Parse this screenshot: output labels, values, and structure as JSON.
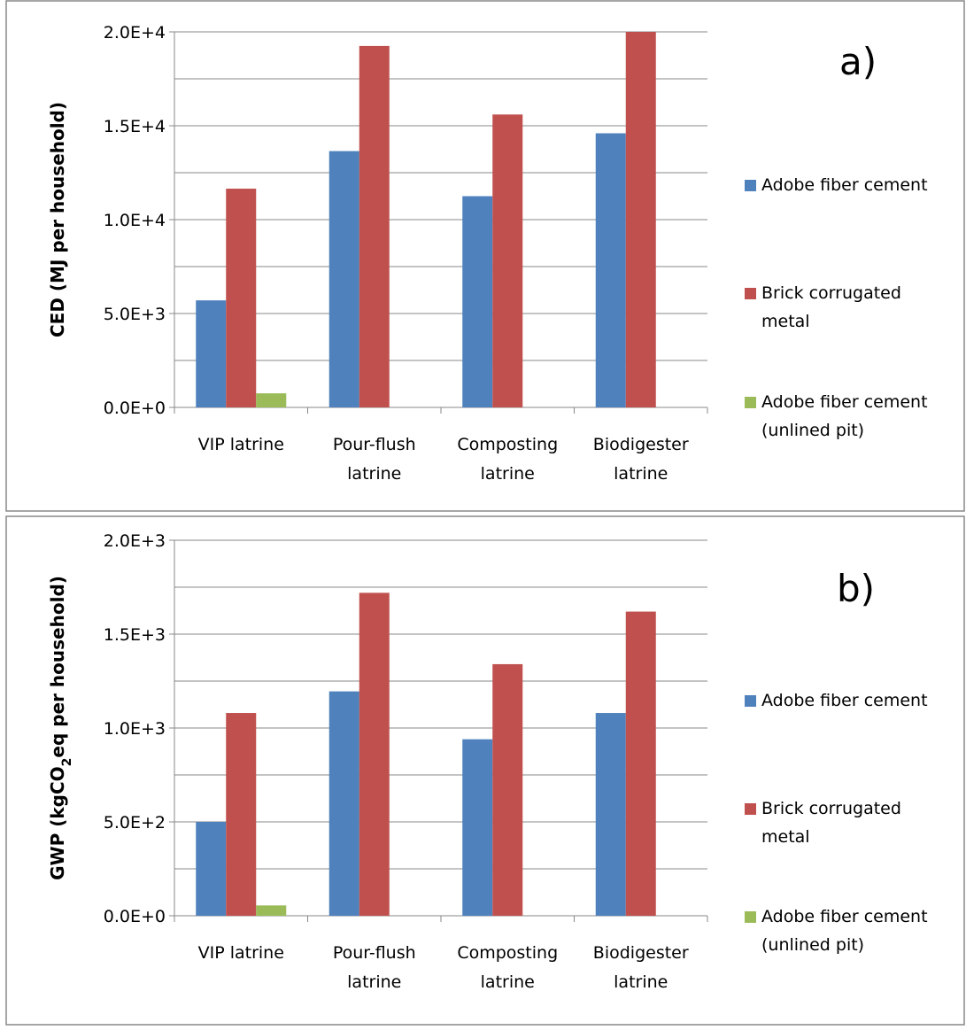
{
  "chart_data": [
    {
      "type": "bar",
      "panel_label": "a)",
      "ylabel_main": "CED (MJ per household)",
      "categories": [
        [
          "VIP latrine"
        ],
        [
          "Pour-flush",
          "latrine"
        ],
        [
          "Composting",
          "latrine"
        ],
        [
          "Biodigester",
          "latrine"
        ]
      ],
      "yticks": [
        "0.0E+0",
        "5.0E+3",
        "1.0E+4",
        "1.5E+4",
        "2.0E+4"
      ],
      "ylim": [
        0,
        20000
      ],
      "minor_grid_step": 2500,
      "series": [
        {
          "name": [
            "Adobe fiber cement"
          ],
          "color": "#4F81BD",
          "values": [
            5700,
            13650,
            11250,
            14600
          ]
        },
        {
          "name": [
            "Brick corrugated",
            "metal"
          ],
          "color": "#C0504D",
          "values": [
            11650,
            19250,
            15600,
            20000
          ]
        },
        {
          "name": [
            "Adobe fiber cement",
            "(unlined pit)"
          ],
          "color": "#9BBB59",
          "values": [
            750,
            null,
            null,
            null
          ]
        }
      ],
      "legend_position": "right"
    },
    {
      "type": "bar",
      "panel_label": "b)",
      "ylabel_prefix": "GWP (kgCO",
      "ylabel_sub": "2",
      "ylabel_suffix": "eq per household)",
      "categories": [
        [
          "VIP latrine"
        ],
        [
          "Pour-flush",
          "latrine"
        ],
        [
          "Composting",
          "latrine"
        ],
        [
          "Biodigester",
          "latrine"
        ]
      ],
      "yticks": [
        "0.0E+0",
        "5.0E+2",
        "1.0E+3",
        "1.5E+3",
        "2.0E+3"
      ],
      "ylim": [
        0,
        2000
      ],
      "minor_grid_step": 250,
      "series": [
        {
          "name": [
            "Adobe fiber cement"
          ],
          "color": "#4F81BD",
          "values": [
            500,
            1195,
            940,
            1080
          ]
        },
        {
          "name": [
            "Brick corrugated",
            "metal"
          ],
          "color": "#C0504D",
          "values": [
            1080,
            1720,
            1340,
            1620
          ]
        },
        {
          "name": [
            "Adobe fiber cement",
            "(unlined pit)"
          ],
          "color": "#9BBB59",
          "values": [
            55,
            null,
            null,
            null
          ]
        }
      ],
      "legend_position": "right"
    }
  ]
}
